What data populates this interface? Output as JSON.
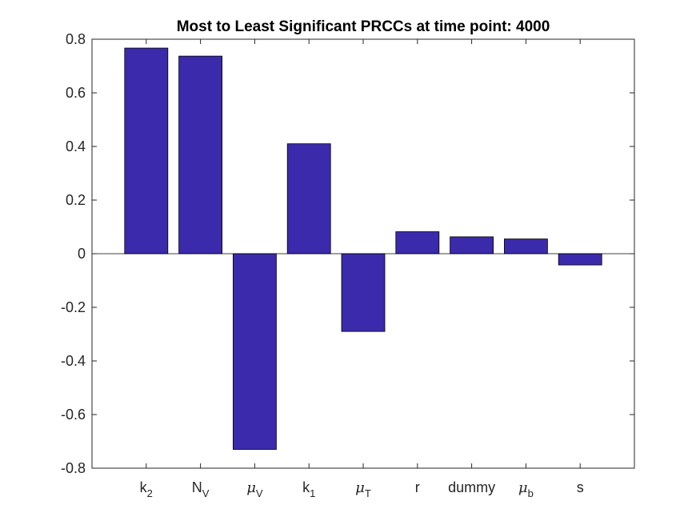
{
  "chart_data": {
    "type": "bar",
    "title": "Most to Least Significant PRCCs at time point: 4000",
    "xlabel": "",
    "ylabel": "",
    "ylim": [
      -0.8,
      0.8
    ],
    "yticks": [
      "-0.8",
      "-0.6",
      "-0.4",
      "-0.2",
      "0",
      "0.2",
      "0.4",
      "0.6",
      "0.8"
    ],
    "categories": [
      "k_2",
      "N_V",
      "μ_V",
      "k_1",
      "μ_T",
      "r",
      "dummy",
      "μ_b",
      "s"
    ],
    "category_labels": [
      {
        "base": "k",
        "sub": "2",
        "greek": false
      },
      {
        "base": "N",
        "sub": "V",
        "greek": false
      },
      {
        "base": "μ",
        "sub": "V",
        "greek": true
      },
      {
        "base": "k",
        "sub": "1",
        "greek": false
      },
      {
        "base": "μ",
        "sub": "T",
        "greek": true
      },
      {
        "base": "r",
        "sub": "",
        "greek": false
      },
      {
        "base": "dummy",
        "sub": "",
        "greek": false
      },
      {
        "base": "μ",
        "sub": "b",
        "greek": true
      },
      {
        "base": "s",
        "sub": "",
        "greek": false
      }
    ],
    "values": [
      0.767,
      0.737,
      -0.73,
      0.41,
      -0.29,
      0.082,
      0.063,
      0.055,
      -0.042
    ],
    "bar_color": "#3b2aab",
    "grid": false,
    "legend": "none"
  }
}
